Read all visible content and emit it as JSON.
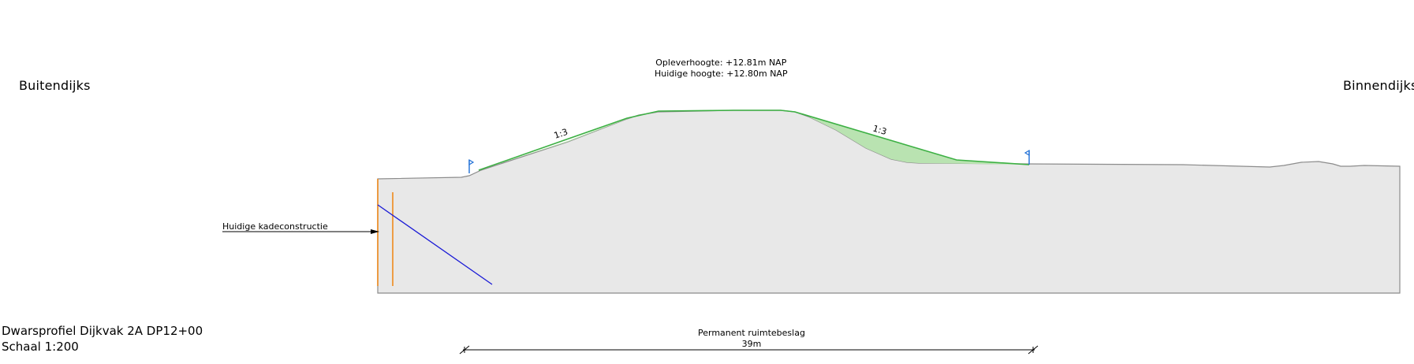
{
  "sides": {
    "left": "Buitendijks",
    "right": "Binnendijks"
  },
  "crest": {
    "design_height": "Opleverhoogte: +12.81m NAP",
    "current_height": "Huidige hoogte: +12.80m NAP"
  },
  "slopes": {
    "left": "1:3",
    "right": "1:3"
  },
  "callouts": {
    "existing_quay": "Huidige kadeconstructie"
  },
  "dimension": {
    "label": "Permanent ruimtebeslag",
    "value": "39m"
  },
  "title_block": {
    "title": "Dwarsprofiel Dijkvak 2A DP12+00",
    "scale": "Schaal 1:200"
  },
  "colors": {
    "ground_fill": "#e8e8e8",
    "ground_line": "#8c8c8c",
    "design_line": "#3cb043",
    "design_fill": "#b9e3b1",
    "marker_flag": "#1f6fd6",
    "sheet_pile": "#f08a1c",
    "anchor": "#1a1ad6"
  }
}
